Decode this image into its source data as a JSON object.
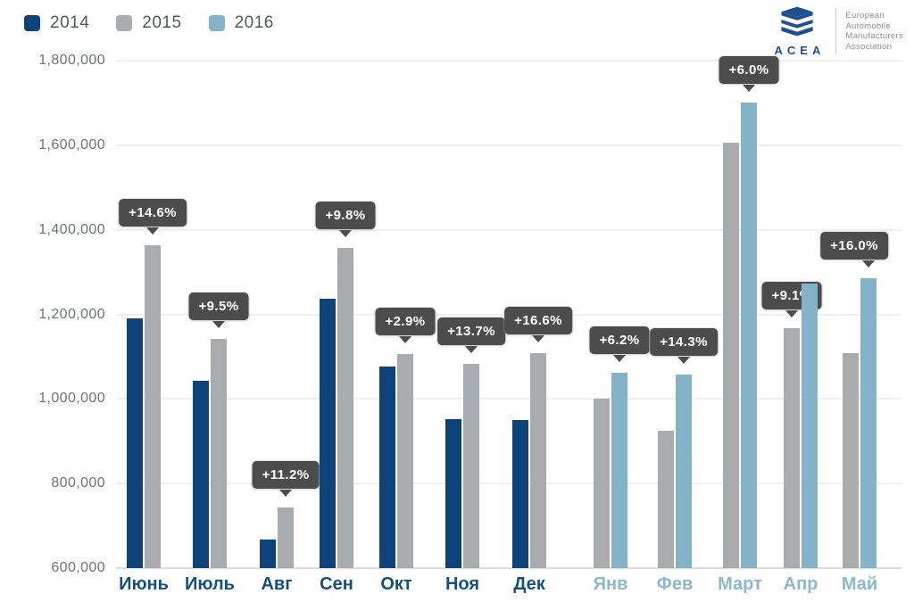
{
  "legend": {
    "items": [
      {
        "label": "2014",
        "color": "#0d4378"
      },
      {
        "label": "2015",
        "color": "#a9abae"
      },
      {
        "label": "2016",
        "color": "#84b2c8"
      }
    ]
  },
  "logo": {
    "acronym": "ACEA",
    "name_lines": [
      "European",
      "Automobile",
      "Manufacturers",
      "Association"
    ],
    "color": "#1d4f91"
  },
  "chart_data": {
    "type": "bar",
    "title": "",
    "ylabel": "",
    "xlabel": "",
    "ylim": [
      600000,
      1800000
    ],
    "grid": true,
    "legend_position": "top-left",
    "yticks": [
      {
        "value": 600000,
        "label": "600,000"
      },
      {
        "value": 800000,
        "label": "800,000"
      },
      {
        "value": 1000000,
        "label": "1,000,000"
      },
      {
        "value": 1200000,
        "label": "1,200,000"
      },
      {
        "value": 1400000,
        "label": "1,400,000"
      },
      {
        "value": 1600000,
        "label": "1,600,000"
      },
      {
        "value": 1800000,
        "label": "1,800,000"
      }
    ],
    "series_colors": {
      "2014": "#0d4378",
      "2015": "#a9abae",
      "2016": "#84b2c8"
    },
    "groups": [
      {
        "month": "Июнь",
        "section": "a",
        "bars": [
          {
            "year": "2014",
            "value": 1190000
          },
          {
            "year": "2015",
            "value": 1364000
          }
        ],
        "change_label": "+14.6%",
        "tooltip_anchor": 1
      },
      {
        "month": "Июль",
        "section": "a",
        "bars": [
          {
            "year": "2014",
            "value": 1042000
          },
          {
            "year": "2015",
            "value": 1141000
          }
        ],
        "change_label": "+9.5%",
        "tooltip_anchor": 1
      },
      {
        "month": "Авг",
        "section": "a",
        "bars": [
          {
            "year": "2014",
            "value": 668000
          },
          {
            "year": "2015",
            "value": 743000
          }
        ],
        "change_label": "+11.2%",
        "tooltip_anchor": 1
      },
      {
        "month": "Сен",
        "section": "a",
        "bars": [
          {
            "year": "2014",
            "value": 1237000
          },
          {
            "year": "2015",
            "value": 1358000
          }
        ],
        "change_label": "+9.8%",
        "tooltip_anchor": 1
      },
      {
        "month": "Окт",
        "section": "a",
        "bars": [
          {
            "year": "2014",
            "value": 1076000
          },
          {
            "year": "2015",
            "value": 1107000
          }
        ],
        "change_label": "+2.9%",
        "tooltip_anchor": 1
      },
      {
        "month": "Ноя",
        "section": "a",
        "bars": [
          {
            "year": "2014",
            "value": 953000
          },
          {
            "year": "2015",
            "value": 1084000
          }
        ],
        "change_label": "+13.7%",
        "tooltip_anchor": 1
      },
      {
        "month": "Дек",
        "section": "a",
        "bars": [
          {
            "year": "2014",
            "value": 951000
          },
          {
            "year": "2015",
            "value": 1109000
          }
        ],
        "change_label": "+16.6%",
        "tooltip_anchor": 1
      },
      {
        "month": "Янв",
        "section": "b",
        "bars": [
          {
            "year": "2015",
            "value": 1000000
          },
          {
            "year": "2016",
            "value": 1062000
          }
        ],
        "change_label": "+6.2%",
        "tooltip_anchor": 1
      },
      {
        "month": "Фев",
        "section": "b",
        "bars": [
          {
            "year": "2015",
            "value": 925000
          },
          {
            "year": "2016",
            "value": 1057000
          }
        ],
        "change_label": "+14.3%",
        "tooltip_anchor": 1
      },
      {
        "month": "Март",
        "section": "b",
        "bars": [
          {
            "year": "2015",
            "value": 1605000
          },
          {
            "year": "2016",
            "value": 1701000
          }
        ],
        "change_label": "+6.0%",
        "tooltip_anchor": 1
      },
      {
        "month": "Апр",
        "section": "b",
        "bars": [
          {
            "year": "2015",
            "value": 1167000
          },
          {
            "year": "2016",
            "value": 1273000
          }
        ],
        "change_label": "+9.1%",
        "tooltip_anchor": 0
      },
      {
        "month": "Май",
        "section": "b",
        "bars": [
          {
            "year": "2015",
            "value": 1108000
          },
          {
            "year": "2016",
            "value": 1285000
          }
        ],
        "change_label": "+16.0%",
        "tooltip_anchor": 1,
        "tooltip_dx": -16
      }
    ]
  }
}
